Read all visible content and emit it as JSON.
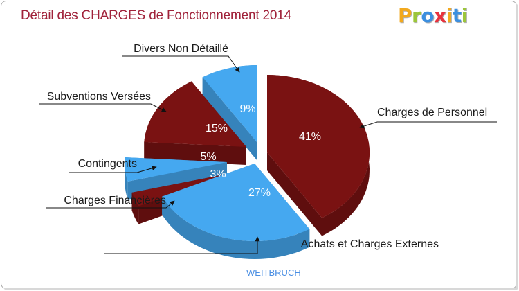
{
  "title": "Détail des CHARGES de Fonctionnement 2014",
  "logo": {
    "letters": [
      "P",
      "r",
      "o",
      "x",
      "i",
      "t",
      "i"
    ],
    "colors": [
      "#f2a91e",
      "#9cc63b",
      "#3b8fe0",
      "#e8323e",
      "#f2a91e",
      "#3b8fe0",
      "#9cc63b"
    ]
  },
  "commune": "WEITBRUCH",
  "colors": {
    "dark_red": "#7a1212",
    "blue": "#45a8f0",
    "title": "#a0223a"
  },
  "chart_data": {
    "type": "pie",
    "title": "Détail des CHARGES de Fonctionnement 2014",
    "slices": [
      {
        "label": "Charges de Personnel",
        "value": 41,
        "display": "41%",
        "color": "#7a1212"
      },
      {
        "label": "Achats et Charges Externes",
        "value": 27,
        "display": "27%",
        "color": "#45a8f0"
      },
      {
        "label": "Charges Financières",
        "value": 3,
        "display": "3%",
        "color": "#7a1212"
      },
      {
        "label": "Contingents",
        "value": 5,
        "display": "5%",
        "color": "#45a8f0"
      },
      {
        "label": "Subventions Versées",
        "value": 15,
        "display": "15%",
        "color": "#7a1212"
      },
      {
        "label": "Divers Non Détaillé",
        "value": 9,
        "display": "9%",
        "color": "#45a8f0"
      }
    ]
  }
}
